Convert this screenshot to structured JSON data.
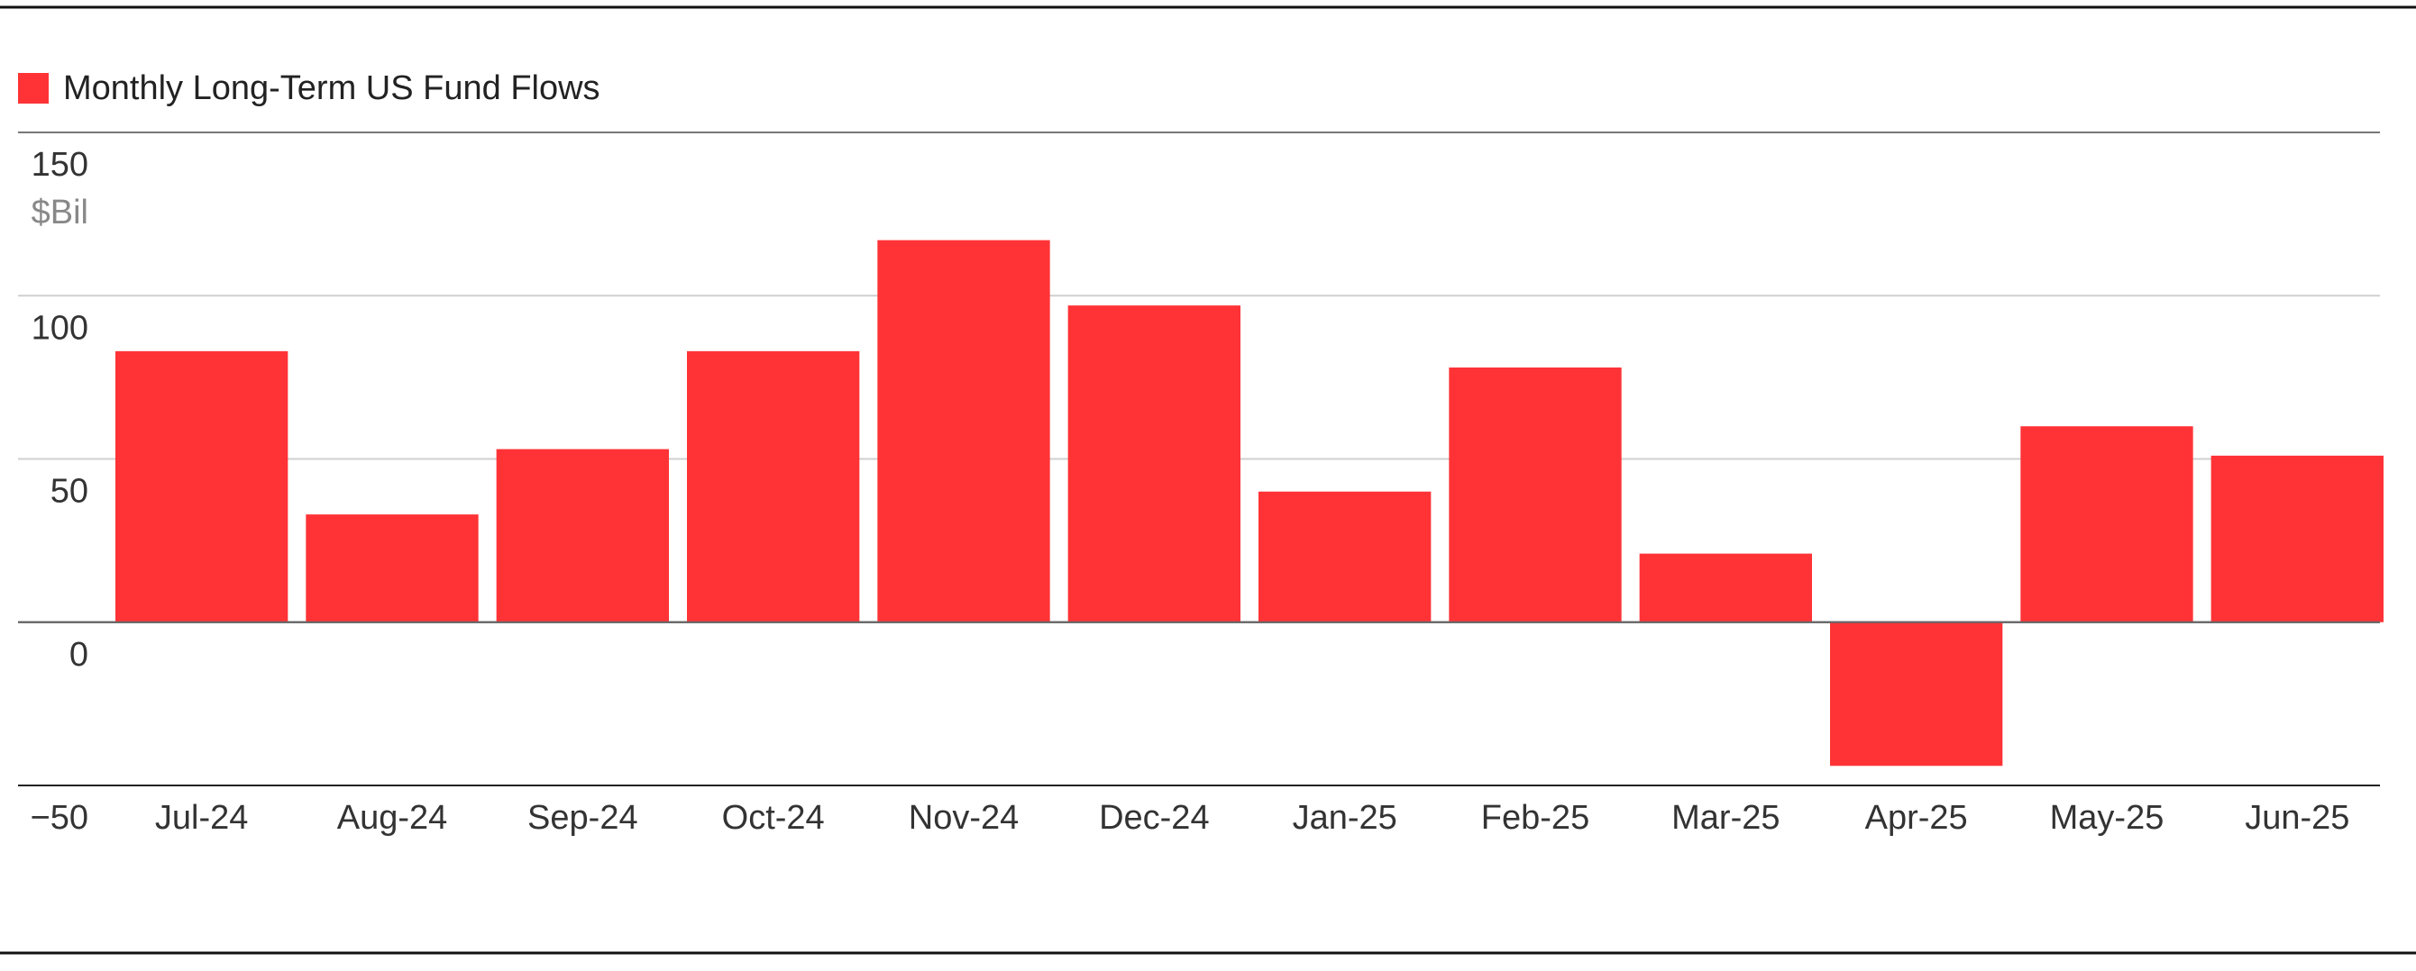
{
  "chart_data": {
    "type": "bar",
    "title": "",
    "xlabel": "",
    "ylabel": "",
    "unit": "$Bil",
    "series": [
      {
        "name": "Monthly Long-Term US Fund Flows",
        "values": [
          83,
          33,
          53,
          83,
          117,
          97,
          40,
          78,
          21,
          -44,
          60,
          51
        ]
      }
    ],
    "categories": [
      "Jul-24",
      "Aug-24",
      "Sep-24",
      "Oct-24",
      "Nov-24",
      "Dec-24",
      "Jan-25",
      "Feb-25",
      "Mar-25",
      "Apr-25",
      "May-25",
      "Jun-25"
    ],
    "yticks": [
      150,
      100,
      50,
      0,
      -50
    ],
    "ytick_labels": [
      "150",
      "100",
      "50",
      "0",
      "−50"
    ],
    "ylim": [
      -50,
      150
    ],
    "grid": true,
    "legend_position": "top-left",
    "colors": {
      "bar": "#ff3336",
      "grid": "#cfcfcf",
      "axis": "#222222",
      "tick_text": "#333333",
      "unit_text": "#888888",
      "border": "#111111"
    }
  }
}
